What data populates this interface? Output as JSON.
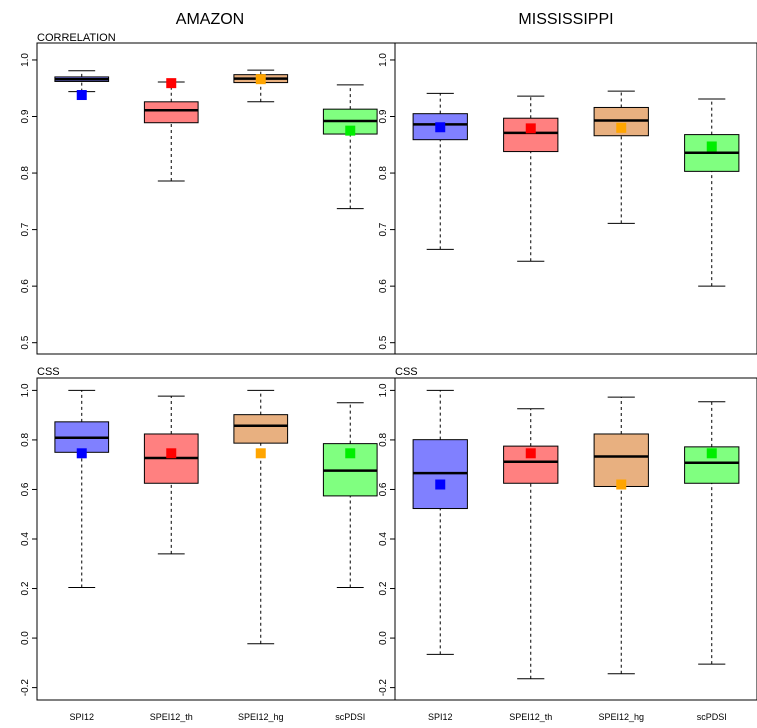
{
  "columns": [
    {
      "title": "AMAZON"
    },
    {
      "title": "MISSISSIPPI"
    }
  ],
  "rows": [
    {
      "label": "CORRELATION"
    },
    {
      "label": "CSS"
    }
  ],
  "colors": {
    "SPI12": {
      "box": "#8080ff",
      "point": "#0000ff"
    },
    "SPEI12_th": {
      "box": "#ff8080",
      "point": "#ff0000"
    },
    "SPEI12_hg": {
      "box": "#e8b080",
      "point": "#ffa500"
    },
    "scPDSI": {
      "box": "#80ff80",
      "point": "#00ee00"
    }
  },
  "chart_data": [
    {
      "type": "boxplot",
      "title": "AMAZON",
      "panel_label": "CORRELATION",
      "categories": [
        "SPI12",
        "SPEI12_th",
        "SPEI12_hg",
        "scPDSI"
      ],
      "ylim": [
        0.48,
        1.03
      ],
      "yticks": [
        "0.5",
        "0.6",
        "0.7",
        "0.8",
        "0.9",
        "1.0"
      ],
      "boxes": [
        {
          "name": "SPI12",
          "whisker_low": 0.944,
          "q1": 0.962,
          "median": 0.966,
          "q3": 0.97,
          "whisker_high": 0.981,
          "point": 0.938
        },
        {
          "name": "SPEI12_th",
          "whisker_low": 0.786,
          "q1": 0.889,
          "median": 0.911,
          "q3": 0.926,
          "whisker_high": 0.961,
          "point": 0.959
        },
        {
          "name": "SPEI12_hg",
          "whisker_low": 0.926,
          "q1": 0.96,
          "median": 0.967,
          "q3": 0.974,
          "whisker_high": 0.982,
          "point": 0.966
        },
        {
          "name": "scPDSI",
          "whisker_low": 0.737,
          "q1": 0.869,
          "median": 0.892,
          "q3": 0.913,
          "whisker_high": 0.956,
          "point": 0.875
        }
      ]
    },
    {
      "type": "boxplot",
      "title": "MISSISSIPPI",
      "panel_label": "",
      "categories": [
        "SPI12",
        "SPEI12_th",
        "SPEI12_hg",
        "scPDSI"
      ],
      "ylim": [
        0.48,
        1.03
      ],
      "yticks": [
        "0.5",
        "0.6",
        "0.7",
        "0.8",
        "0.9",
        "1.0"
      ],
      "boxes": [
        {
          "name": "SPI12",
          "whisker_low": 0.665,
          "q1": 0.859,
          "median": 0.886,
          "q3": 0.905,
          "whisker_high": 0.941,
          "point": 0.881
        },
        {
          "name": "SPEI12_th",
          "whisker_low": 0.644,
          "q1": 0.838,
          "median": 0.871,
          "q3": 0.897,
          "whisker_high": 0.936,
          "point": 0.879
        },
        {
          "name": "SPEI12_hg",
          "whisker_low": 0.711,
          "q1": 0.866,
          "median": 0.893,
          "q3": 0.916,
          "whisker_high": 0.945,
          "point": 0.88
        },
        {
          "name": "scPDSI",
          "whisker_low": 0.6,
          "q1": 0.803,
          "median": 0.836,
          "q3": 0.868,
          "whisker_high": 0.931,
          "point": 0.847
        }
      ]
    },
    {
      "type": "boxplot",
      "title": "",
      "panel_label": "CSS",
      "categories": [
        "SPI12",
        "SPEI12_th",
        "SPEI12_hg",
        "scPDSI"
      ],
      "ylim": [
        -0.25,
        1.05
      ],
      "yticks": [
        "-0.2",
        "0.0",
        "0.2",
        "0.4",
        "0.6",
        "0.8",
        "1.0"
      ],
      "boxes": [
        {
          "name": "SPI12",
          "whisker_low": 0.204,
          "q1": 0.75,
          "median": 0.809,
          "q3": 0.873,
          "whisker_high": 1.0,
          "point": 0.746
        },
        {
          "name": "SPEI12_th",
          "whisker_low": 0.34,
          "q1": 0.625,
          "median": 0.727,
          "q3": 0.824,
          "whisker_high": 0.977,
          "point": 0.746
        },
        {
          "name": "SPEI12_hg",
          "whisker_low": -0.023,
          "q1": 0.787,
          "median": 0.857,
          "q3": 0.902,
          "whisker_high": 1.0,
          "point": 0.746
        },
        {
          "name": "scPDSI",
          "whisker_low": 0.204,
          "q1": 0.574,
          "median": 0.676,
          "q3": 0.785,
          "whisker_high": 0.95,
          "point": 0.746
        }
      ]
    },
    {
      "type": "boxplot",
      "title": "",
      "panel_label": "CSS",
      "categories": [
        "SPI12",
        "SPEI12_th",
        "SPEI12_hg",
        "scPDSI"
      ],
      "ylim": [
        -0.25,
        1.05
      ],
      "yticks": [
        "-0.2",
        "0.0",
        "0.2",
        "0.4",
        "0.6",
        "0.8",
        "1.0"
      ],
      "boxes": [
        {
          "name": "SPI12",
          "whisker_low": -0.066,
          "q1": 0.523,
          "median": 0.666,
          "q3": 0.801,
          "whisker_high": 1.0,
          "point": 0.62
        },
        {
          "name": "SPEI12_th",
          "whisker_low": -0.164,
          "q1": 0.625,
          "median": 0.712,
          "q3": 0.775,
          "whisker_high": 0.926,
          "point": 0.746
        },
        {
          "name": "SPEI12_hg",
          "whisker_low": -0.144,
          "q1": 0.612,
          "median": 0.733,
          "q3": 0.824,
          "whisker_high": 0.973,
          "point": 0.62
        },
        {
          "name": "scPDSI",
          "whisker_low": -0.105,
          "q1": 0.625,
          "median": 0.708,
          "q3": 0.772,
          "whisker_high": 0.954,
          "point": 0.746
        }
      ]
    }
  ]
}
